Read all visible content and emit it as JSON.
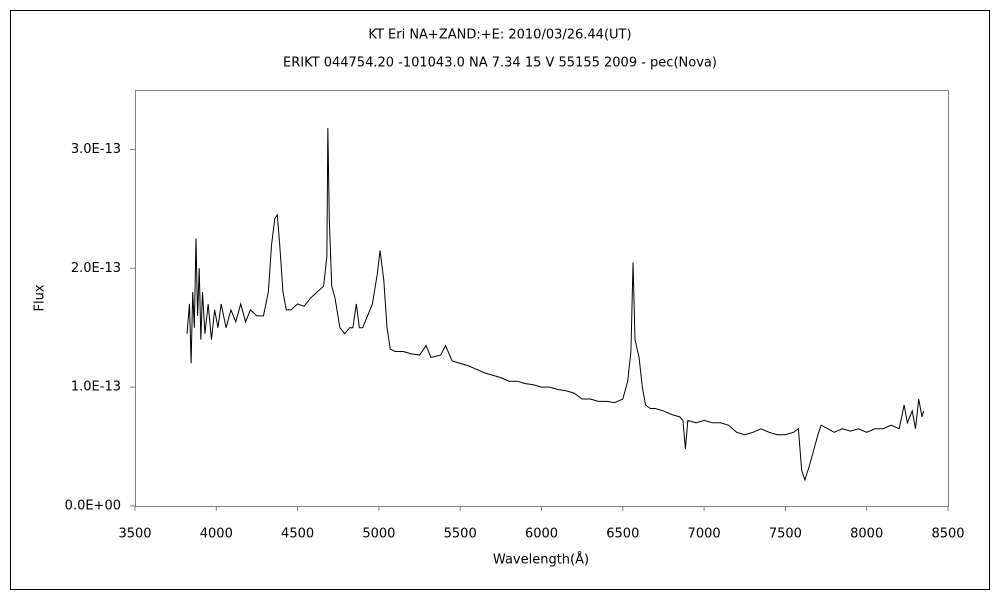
{
  "chart_data": {
    "type": "line",
    "title": "KT Eri    NA+ZAND:+E:    2010/03/26.44(UT)",
    "subtitle": "ERIKT 044754.20 -101043.0 NA 7.34 15 V 55155 2009 - pec(Nova)",
    "x_label": "Wavelength(Å)",
    "y_label": "Flux",
    "xlim": [
      3500,
      8500
    ],
    "xticks": [
      3500,
      4000,
      4500,
      5000,
      5500,
      6000,
      6500,
      7000,
      7500,
      8000,
      8500
    ],
    "ylim": [
      0,
      3.5e-13
    ],
    "yticks": [
      {
        "value": 0,
        "label": "0.0E+00"
      },
      {
        "value": 1e-13,
        "label": "1.0E-13"
      },
      {
        "value": 2e-13,
        "label": "2.0E-13"
      },
      {
        "value": 3e-13,
        "label": "3.0E-13"
      }
    ],
    "grid": false,
    "series": [
      {
        "color": "#000000",
        "x": [
          3820,
          3835,
          3845,
          3855,
          3865,
          3875,
          3885,
          3895,
          3905,
          3915,
          3930,
          3950,
          3970,
          3990,
          4010,
          4030,
          4060,
          4090,
          4120,
          4150,
          4180,
          4210,
          4250,
          4290,
          4320,
          4340,
          4360,
          4375,
          4390,
          4410,
          4430,
          4460,
          4500,
          4540,
          4580,
          4620,
          4660,
          4680,
          4686,
          4695,
          4710,
          4730,
          4760,
          4790,
          4820,
          4840,
          4861,
          4880,
          4900,
          4930,
          4960,
          4990,
          5007,
          5030,
          5050,
          5070,
          5100,
          5150,
          5200,
          5250,
          5290,
          5320,
          5380,
          5410,
          5450,
          5500,
          5550,
          5600,
          5650,
          5700,
          5750,
          5800,
          5850,
          5900,
          5950,
          6000,
          6050,
          6100,
          6150,
          6200,
          6250,
          6300,
          6350,
          6400,
          6450,
          6500,
          6530,
          6550,
          6563,
          6575,
          6600,
          6620,
          6640,
          6670,
          6700,
          6750,
          6800,
          6850,
          6870,
          6885,
          6900,
          6950,
          7000,
          7050,
          7100,
          7150,
          7200,
          7250,
          7300,
          7350,
          7400,
          7450,
          7500,
          7550,
          7580,
          7600,
          7620,
          7650,
          7680,
          7700,
          7720,
          7760,
          7800,
          7850,
          7900,
          7950,
          8000,
          8050,
          8100,
          8150,
          8200,
          8230,
          8250,
          8280,
          8300,
          8320,
          8340,
          8350
        ],
        "values": [
          1.45e-13,
          1.7e-13,
          1.2e-13,
          1.8e-13,
          1.5e-13,
          2.25e-13,
          1.6e-13,
          2e-13,
          1.4e-13,
          1.8e-13,
          1.45e-13,
          1.7e-13,
          1.4e-13,
          1.65e-13,
          1.5e-13,
          1.7e-13,
          1.5e-13,
          1.65e-13,
          1.55e-13,
          1.7e-13,
          1.55e-13,
          1.65e-13,
          1.6e-13,
          1.6e-13,
          1.8e-13,
          2.2e-13,
          2.42e-13,
          2.45e-13,
          2.2e-13,
          1.8e-13,
          1.65e-13,
          1.65e-13,
          1.7e-13,
          1.68e-13,
          1.75e-13,
          1.8e-13,
          1.85e-13,
          2.1e-13,
          3.18e-13,
          2.4e-13,
          1.85e-13,
          1.75e-13,
          1.5e-13,
          1.45e-13,
          1.5e-13,
          1.5e-13,
          1.7e-13,
          1.5e-13,
          1.5e-13,
          1.6e-13,
          1.7e-13,
          1.95e-13,
          2.15e-13,
          1.9e-13,
          1.5e-13,
          1.32e-13,
          1.3e-13,
          1.3e-13,
          1.28e-13,
          1.27e-13,
          1.35e-13,
          1.25e-13,
          1.27e-13,
          1.35e-13,
          1.22e-13,
          1.2e-13,
          1.18e-13,
          1.15e-13,
          1.12e-13,
          1.1e-13,
          1.08e-13,
          1.05e-13,
          1.05e-13,
          1.03e-13,
          1.02e-13,
          1e-13,
          1e-13,
          9.8e-14,
          9.7e-14,
          9.5e-14,
          9e-14,
          9e-14,
          8.8e-14,
          8.8e-14,
          8.7e-14,
          9e-14,
          1.05e-13,
          1.3e-13,
          2.05e-13,
          1.4e-13,
          1.25e-13,
          1e-13,
          8.5e-14,
          8.2e-14,
          8.2e-14,
          8e-14,
          7.7e-14,
          7.5e-14,
          7.2e-14,
          4.8e-14,
          7.2e-14,
          7e-14,
          7.2e-14,
          7e-14,
          7e-14,
          6.8e-14,
          6.2e-14,
          6e-14,
          6.2e-14,
          6.5e-14,
          6.2e-14,
          6e-14,
          6e-14,
          6.2e-14,
          6.5e-14,
          3e-14,
          2.2e-14,
          3.5e-14,
          5e-14,
          6e-14,
          6.8e-14,
          6.5e-14,
          6.2e-14,
          6.5e-14,
          6.3e-14,
          6.5e-14,
          6.2e-14,
          6.5e-14,
          6.5e-14,
          6.8e-14,
          6.5e-14,
          8.5e-14,
          7e-14,
          8e-14,
          6.5e-14,
          9e-14,
          7.5e-14,
          8e-14
        ]
      }
    ]
  }
}
